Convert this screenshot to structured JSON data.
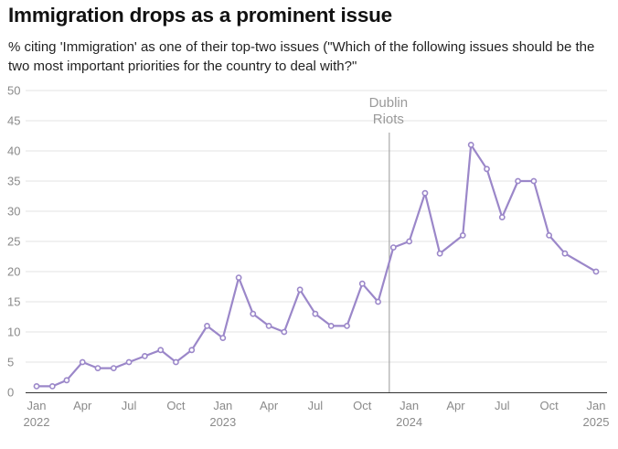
{
  "chart_data": {
    "type": "line",
    "title": "Immigration drops as a prominent issue",
    "subtitle": "% citing 'Immigration' as one of their top-two issues (\"Which of the following issues should be the two most important priorities for the country to deal with?\"",
    "xlabel": "",
    "ylabel": "",
    "ylim": [
      0,
      50
    ],
    "yticks": [
      "0",
      "5",
      "10",
      "15",
      "20",
      "25",
      "30",
      "35",
      "40",
      "45",
      "50"
    ],
    "xlim": [
      "2022-01",
      "2025-01"
    ],
    "xticks": [
      {
        "date": "2022-01",
        "label": "Jan",
        "year": "2022"
      },
      {
        "date": "2022-04",
        "label": "Apr",
        "year": ""
      },
      {
        "date": "2022-07",
        "label": "Jul",
        "year": ""
      },
      {
        "date": "2022-10",
        "label": "Oct",
        "year": ""
      },
      {
        "date": "2023-01",
        "label": "Jan",
        "year": "2023"
      },
      {
        "date": "2023-04",
        "label": "Apr",
        "year": ""
      },
      {
        "date": "2023-07",
        "label": "Jul",
        "year": ""
      },
      {
        "date": "2023-10",
        "label": "Oct",
        "year": ""
      },
      {
        "date": "2024-01",
        "label": "Jan",
        "year": "2024"
      },
      {
        "date": "2024-04",
        "label": "Apr",
        "year": ""
      },
      {
        "date": "2024-07",
        "label": "Jul",
        "year": ""
      },
      {
        "date": "2024-10",
        "label": "Oct",
        "year": ""
      },
      {
        "date": "2025-01",
        "label": "Jan",
        "year": "2025"
      }
    ],
    "grid": "horizontal",
    "color": "#9b87c9",
    "annotation": {
      "date": "2023-11-23",
      "lines": [
        "Dublin",
        "Riots"
      ]
    },
    "points": [
      {
        "x": "2022-01-01",
        "y": 1
      },
      {
        "x": "2022-02-01",
        "y": 1
      },
      {
        "x": "2022-03-01",
        "y": 2
      },
      {
        "x": "2022-04-01",
        "y": 5
      },
      {
        "x": "2022-05-01",
        "y": 4
      },
      {
        "x": "2022-06-01",
        "y": 4
      },
      {
        "x": "2022-07-01",
        "y": 5
      },
      {
        "x": "2022-08-01",
        "y": 6
      },
      {
        "x": "2022-09-01",
        "y": 7
      },
      {
        "x": "2022-10-01",
        "y": 5
      },
      {
        "x": "2022-11-01",
        "y": 7
      },
      {
        "x": "2022-12-01",
        "y": 11
      },
      {
        "x": "2023-01-01",
        "y": 9
      },
      {
        "x": "2023-02-01",
        "y": 19
      },
      {
        "x": "2023-03-01",
        "y": 13
      },
      {
        "x": "2023-04-01",
        "y": 11
      },
      {
        "x": "2023-05-01",
        "y": 10
      },
      {
        "x": "2023-06-01",
        "y": 17
      },
      {
        "x": "2023-07-01",
        "y": 13
      },
      {
        "x": "2023-08-01",
        "y": 11
      },
      {
        "x": "2023-09-01",
        "y": 11
      },
      {
        "x": "2023-10-01",
        "y": 18
      },
      {
        "x": "2023-11-01",
        "y": 15
      },
      {
        "x": "2023-12-01",
        "y": 24
      },
      {
        "x": "2024-01-01",
        "y": 25
      },
      {
        "x": "2024-02-01",
        "y": 33
      },
      {
        "x": "2024-03-01",
        "y": 23
      },
      {
        "x": "2024-04-15",
        "y": 26
      },
      {
        "x": "2024-05-01",
        "y": 41
      },
      {
        "x": "2024-06-01",
        "y": 37
      },
      {
        "x": "2024-07-01",
        "y": 29
      },
      {
        "x": "2024-08-01",
        "y": 35
      },
      {
        "x": "2024-09-01",
        "y": 35
      },
      {
        "x": "2024-10-01",
        "y": 26
      },
      {
        "x": "2024-11-01",
        "y": 23
      },
      {
        "x": "2025-01-01",
        "y": 20
      }
    ]
  }
}
